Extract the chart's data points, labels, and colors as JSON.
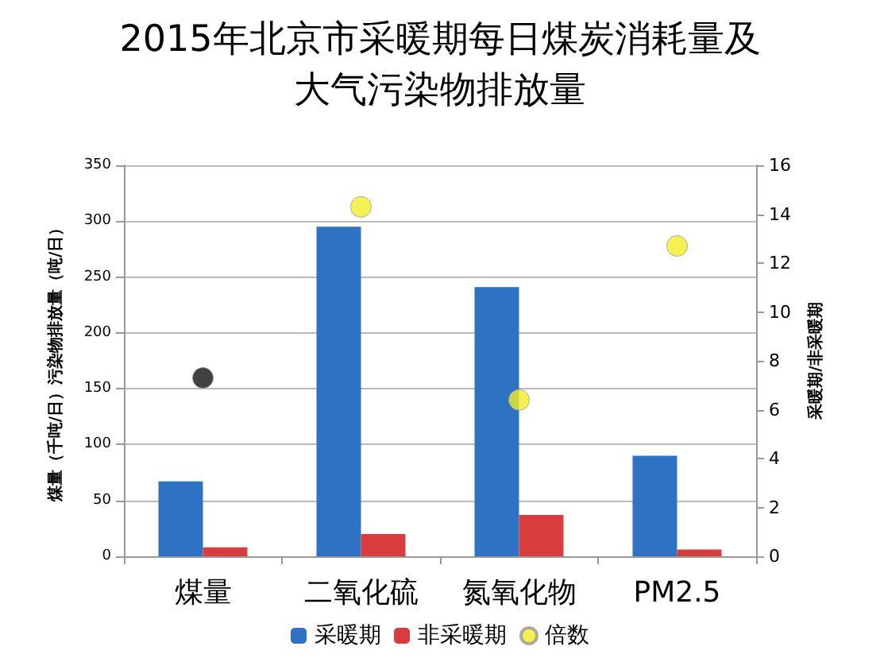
{
  "chart_data": {
    "type": "bar",
    "title": "2015年北京市采暖期每日煤炭消耗量及大气污染物排放量",
    "categories": [
      "煤量",
      "二氧化硫",
      "氮氧化物",
      "PM2.5"
    ],
    "series": [
      {
        "name": "采暖期",
        "color": "#2e72c4",
        "values": [
          67,
          295,
          241,
          90
        ]
      },
      {
        "name": "非采暖期",
        "color": "#d83c3c",
        "values": [
          8,
          20,
          37,
          6
        ]
      },
      {
        "name": "倍数",
        "type": "scatter",
        "axis": "y2",
        "color": "#f2ee22",
        "colors": [
          "#111111",
          "#f2ee22",
          "#f2ee22",
          "#f2ee22"
        ],
        "x": [
          "煤量",
          "二氧化硫",
          "氮氧化物",
          "PM2.5"
        ],
        "values": [
          7.3,
          14.3,
          6.4,
          12.7
        ]
      }
    ],
    "ylabel": "煤量（千吨/日）污染物排放量（吨/日）",
    "y2label": "采暖期/非采暖期",
    "ylim": [
      0,
      350
    ],
    "yticks": [
      0,
      50,
      100,
      150,
      200,
      250,
      300,
      350
    ],
    "y2lim": [
      0,
      16
    ],
    "y2ticks": [
      0,
      2,
      4,
      6,
      8,
      10,
      12,
      14,
      16
    ],
    "grid": "y",
    "legend": "bottom",
    "marker": "circle"
  }
}
